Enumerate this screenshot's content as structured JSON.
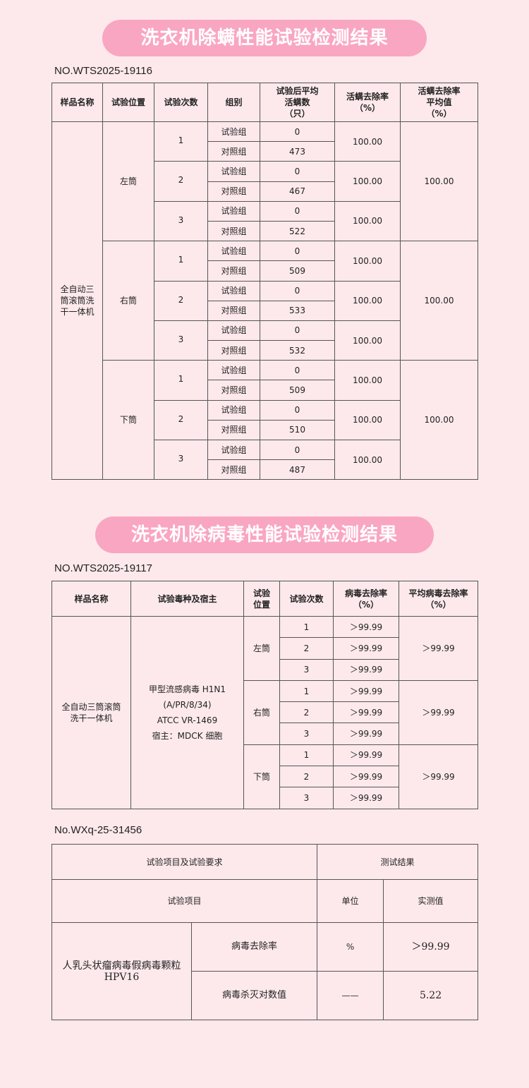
{
  "mite": {
    "title": "洗衣机除螨性能试验检测结果",
    "report_no": "NO.WTS2025-19116",
    "headers": [
      "样品名称",
      "试验位置",
      "试验次数",
      "组别",
      "试验后平均\n活螨数\n（只）",
      "活螨去除率\n（%）",
      "活螨去除率\n平均值\n（%）"
    ],
    "sample": "全自动三\n筒滚筒洗\n干一体机",
    "positions": [
      {
        "name": "左筒",
        "average": "100.00",
        "trials": [
          {
            "n": "1",
            "test_label": "试验组",
            "test": "0",
            "control_label": "对照组",
            "control": "473",
            "rate": "100.00"
          },
          {
            "n": "2",
            "test_label": "试验组",
            "test": "0",
            "control_label": "对照组",
            "control": "467",
            "rate": "100.00"
          },
          {
            "n": "3",
            "test_label": "试验组",
            "test": "0",
            "control_label": "对照组",
            "control": "522",
            "rate": "100.00"
          }
        ]
      },
      {
        "name": "右筒",
        "average": "100.00",
        "trials": [
          {
            "n": "1",
            "test_label": "试验组",
            "test": "0",
            "control_label": "对照组",
            "control": "509",
            "rate": "100.00"
          },
          {
            "n": "2",
            "test_label": "试验组",
            "test": "0",
            "control_label": "对照组",
            "control": "533",
            "rate": "100.00"
          },
          {
            "n": "3",
            "test_label": "试验组",
            "test": "0",
            "control_label": "对照组",
            "control": "532",
            "rate": "100.00"
          }
        ]
      },
      {
        "name": "下筒",
        "average": "100.00",
        "trials": [
          {
            "n": "1",
            "test_label": "试验组",
            "test": "0",
            "control_label": "对照组",
            "control": "509",
            "rate": "100.00"
          },
          {
            "n": "2",
            "test_label": "试验组",
            "test": "0",
            "control_label": "对照组",
            "control": "510",
            "rate": "100.00"
          },
          {
            "n": "3",
            "test_label": "试验组",
            "test": "0",
            "control_label": "对照组",
            "control": "487",
            "rate": "100.00"
          }
        ]
      }
    ]
  },
  "virus": {
    "title": "洗衣机除病毒性能试验检测结果",
    "report_no": "NO.WTS2025-19117",
    "headers": [
      "样品名称",
      "试验毒种及宿主",
      "试验\n位置",
      "试验次数",
      "病毒去除率\n（%）",
      "平均病毒去除率\n（%）"
    ],
    "sample": "全自动三筒滚筒\n洗干一体机",
    "strain": "甲型流感病毒 H1N1\n(A/PR/8/34)\nATCC VR-1469\n宿主：MDCK 细胞",
    "positions": [
      {
        "name": "左筒",
        "average": "＞99.99",
        "trials": [
          {
            "n": "1",
            "rate": "＞99.99"
          },
          {
            "n": "2",
            "rate": "＞99.99"
          },
          {
            "n": "3",
            "rate": "＞99.99"
          }
        ]
      },
      {
        "name": "右筒",
        "average": "＞99.99",
        "trials": [
          {
            "n": "1",
            "rate": "＞99.99"
          },
          {
            "n": "2",
            "rate": "＞99.99"
          },
          {
            "n": "3",
            "rate": "＞99.99"
          }
        ]
      },
      {
        "name": "下筒",
        "average": "＞99.99",
        "trials": [
          {
            "n": "1",
            "rate": "＞99.99"
          },
          {
            "n": "2",
            "rate": "＞99.99"
          },
          {
            "n": "3",
            "rate": "＞99.99"
          }
        ]
      }
    ]
  },
  "hpv": {
    "report_no": "No.WXq-25-31456",
    "header_item_req": "试验项目及试验要求",
    "header_result": "测试结果",
    "header_item": "试验项目",
    "header_unit": "单位",
    "header_value": "实测值",
    "sample": "人乳头状瘤病毒假病毒颗粒\nHPV16",
    "rows": [
      {
        "item": "病毒去除率",
        "unit": "%",
        "value": "＞99.99"
      },
      {
        "item": "病毒杀灭对数值",
        "unit": "——",
        "value": "5.22"
      }
    ]
  },
  "colors": {
    "background": "#fde9ec",
    "title_pill": "#f9a6c2"
  }
}
